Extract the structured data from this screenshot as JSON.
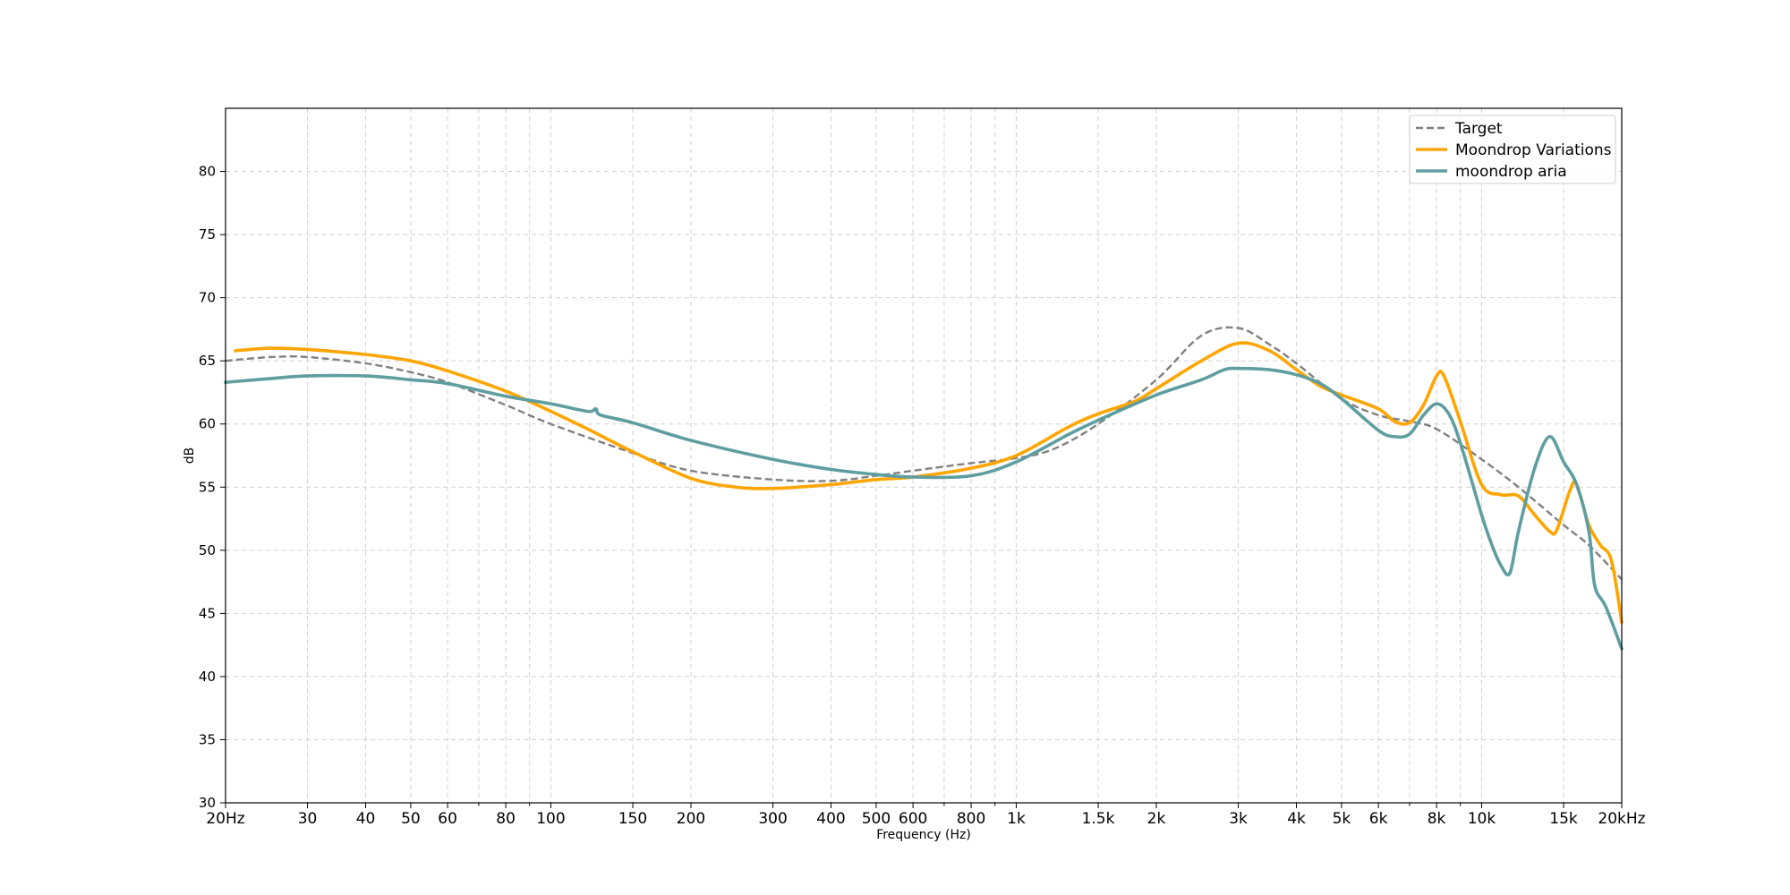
{
  "chart_data": {
    "type": "line",
    "xscale": "log",
    "xlabel": "Frequency (Hz)",
    "ylabel": "dB",
    "xlim": [
      20,
      20000
    ],
    "ylim": [
      30,
      85
    ],
    "grid": true,
    "legend_position": "top-right",
    "x_ticks": [
      {
        "value": 20,
        "label": "20Hz"
      },
      {
        "value": 30,
        "label": "30"
      },
      {
        "value": 40,
        "label": "40"
      },
      {
        "value": 50,
        "label": "50"
      },
      {
        "value": 60,
        "label": "60"
      },
      {
        "value": 80,
        "label": "80"
      },
      {
        "value": 100,
        "label": "100"
      },
      {
        "value": 150,
        "label": "150"
      },
      {
        "value": 200,
        "label": "200"
      },
      {
        "value": 300,
        "label": "300"
      },
      {
        "value": 400,
        "label": "400"
      },
      {
        "value": 500,
        "label": "500"
      },
      {
        "value": 600,
        "label": "600"
      },
      {
        "value": 800,
        "label": "800"
      },
      {
        "value": 1000,
        "label": "1k"
      },
      {
        "value": 1500,
        "label": "1.5k"
      },
      {
        "value": 2000,
        "label": "2k"
      },
      {
        "value": 3000,
        "label": "3k"
      },
      {
        "value": 4000,
        "label": "4k"
      },
      {
        "value": 5000,
        "label": "5k"
      },
      {
        "value": 6000,
        "label": "6k"
      },
      {
        "value": 8000,
        "label": "8k"
      },
      {
        "value": 10000,
        "label": "10k"
      },
      {
        "value": 15000,
        "label": "15k"
      },
      {
        "value": 20000,
        "label": "20kHz"
      }
    ],
    "x_minor_ticks": [
      70,
      90,
      700,
      900,
      7000,
      9000
    ],
    "y_ticks": [
      30,
      35,
      40,
      45,
      50,
      55,
      60,
      65,
      70,
      75,
      80
    ],
    "series": [
      {
        "name": "Target",
        "color": "#808080",
        "dash": true,
        "points": [
          [
            20,
            65.0
          ],
          [
            25,
            65.3
          ],
          [
            30,
            65.3
          ],
          [
            40,
            64.8
          ],
          [
            50,
            64.1
          ],
          [
            60,
            63.3
          ],
          [
            80,
            61.5
          ],
          [
            100,
            60.0
          ],
          [
            150,
            57.7
          ],
          [
            200,
            56.3
          ],
          [
            300,
            55.6
          ],
          [
            400,
            55.5
          ],
          [
            500,
            55.9
          ],
          [
            600,
            56.3
          ],
          [
            800,
            56.9
          ],
          [
            1000,
            57.3
          ],
          [
            1200,
            58.0
          ],
          [
            1500,
            60.0
          ],
          [
            2000,
            63.5
          ],
          [
            2500,
            67.0
          ],
          [
            3000,
            67.6
          ],
          [
            3500,
            66.3
          ],
          [
            4000,
            64.8
          ],
          [
            5000,
            62.0
          ],
          [
            6000,
            60.7
          ],
          [
            7000,
            60.2
          ],
          [
            8000,
            59.6
          ],
          [
            10000,
            57.2
          ],
          [
            12000,
            55.0
          ],
          [
            15000,
            52.0
          ],
          [
            17000,
            50.4
          ],
          [
            20000,
            47.7
          ]
        ]
      },
      {
        "name": "Moondrop Variations",
        "color": "#FFA500",
        "dash": false,
        "points": [
          [
            21,
            65.8
          ],
          [
            25,
            66.0
          ],
          [
            30,
            65.9
          ],
          [
            40,
            65.5
          ],
          [
            50,
            65.0
          ],
          [
            60,
            64.2
          ],
          [
            80,
            62.6
          ],
          [
            100,
            61.0
          ],
          [
            120,
            59.6
          ],
          [
            150,
            57.8
          ],
          [
            200,
            55.7
          ],
          [
            250,
            55.0
          ],
          [
            300,
            54.9
          ],
          [
            400,
            55.2
          ],
          [
            500,
            55.6
          ],
          [
            600,
            55.8
          ],
          [
            800,
            56.5
          ],
          [
            1000,
            57.5
          ],
          [
            1300,
            59.8
          ],
          [
            1500,
            60.8
          ],
          [
            1800,
            61.8
          ],
          [
            2000,
            62.8
          ],
          [
            2500,
            65.0
          ],
          [
            3000,
            66.4
          ],
          [
            3500,
            65.8
          ],
          [
            4000,
            64.3
          ],
          [
            4500,
            63.0
          ],
          [
            5000,
            62.3
          ],
          [
            6000,
            61.2
          ],
          [
            6500,
            60.2
          ],
          [
            7000,
            60.1
          ],
          [
            7500,
            61.5
          ],
          [
            8000,
            63.8
          ],
          [
            8300,
            63.8
          ],
          [
            9000,
            60.2
          ],
          [
            10000,
            55.2
          ],
          [
            11000,
            54.4
          ],
          [
            12000,
            54.3
          ],
          [
            13000,
            52.8
          ],
          [
            14000,
            51.5
          ],
          [
            14500,
            51.6
          ],
          [
            15500,
            54.8
          ],
          [
            16000,
            55.2
          ],
          [
            17000,
            52.0
          ],
          [
            18000,
            50.4
          ],
          [
            19000,
            49.2
          ],
          [
            20000,
            44.3
          ]
        ]
      },
      {
        "name": "moondrop aria",
        "color": "#5F9EA0",
        "dash": false,
        "points": [
          [
            20,
            63.3
          ],
          [
            25,
            63.6
          ],
          [
            30,
            63.8
          ],
          [
            40,
            63.8
          ],
          [
            50,
            63.5
          ],
          [
            60,
            63.2
          ],
          [
            80,
            62.2
          ],
          [
            100,
            61.6
          ],
          [
            120,
            61.0
          ],
          [
            125,
            61.2
          ],
          [
            128,
            60.7
          ],
          [
            150,
            60.1
          ],
          [
            200,
            58.7
          ],
          [
            300,
            57.2
          ],
          [
            400,
            56.4
          ],
          [
            500,
            56.0
          ],
          [
            600,
            55.8
          ],
          [
            800,
            55.9
          ],
          [
            1000,
            57.0
          ],
          [
            1300,
            59.2
          ],
          [
            1500,
            60.3
          ],
          [
            2000,
            62.3
          ],
          [
            2500,
            63.5
          ],
          [
            2800,
            64.3
          ],
          [
            3000,
            64.4
          ],
          [
            3500,
            64.3
          ],
          [
            4000,
            63.9
          ],
          [
            4500,
            63.2
          ],
          [
            5000,
            62.0
          ],
          [
            6000,
            59.5
          ],
          [
            6500,
            59.0
          ],
          [
            7000,
            59.2
          ],
          [
            7500,
            60.7
          ],
          [
            8000,
            61.6
          ],
          [
            8500,
            60.8
          ],
          [
            9000,
            58.5
          ],
          [
            10000,
            52.8
          ],
          [
            10500,
            50.5
          ],
          [
            11000,
            48.8
          ],
          [
            11500,
            48.2
          ],
          [
            12000,
            51.5
          ],
          [
            13000,
            56.5
          ],
          [
            14000,
            59.0
          ],
          [
            15000,
            57.0
          ],
          [
            16000,
            55.2
          ],
          [
            17000,
            51.5
          ],
          [
            17500,
            47.2
          ],
          [
            18500,
            45.5
          ],
          [
            20000,
            42.2
          ]
        ]
      }
    ]
  }
}
